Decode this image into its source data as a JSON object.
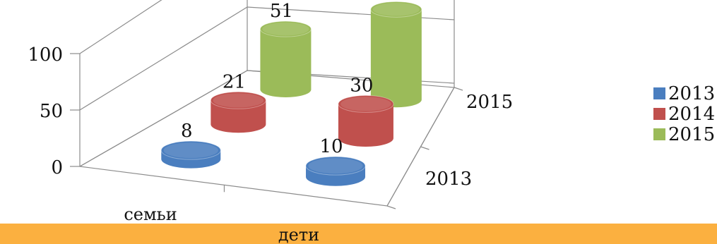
{
  "chart_data": {
    "type": "bar",
    "style": "3d-cylinder",
    "categories": [
      "семьи",
      "дети"
    ],
    "depth_labels": [
      "2013",
      "2015"
    ],
    "series": [
      {
        "name": "2013",
        "values": [
          8,
          10
        ],
        "color": "#4a7ebf"
      },
      {
        "name": "2014",
        "values": [
          21,
          30
        ],
        "color": "#c0504d"
      },
      {
        "name": "2015",
        "values": [
          51,
          76
        ],
        "color": "#9bbb59"
      }
    ],
    "zlim": [
      0,
      100
    ],
    "z_ticks": [
      "0",
      "50",
      "100"
    ],
    "legend_position": "right",
    "grid": true
  }
}
